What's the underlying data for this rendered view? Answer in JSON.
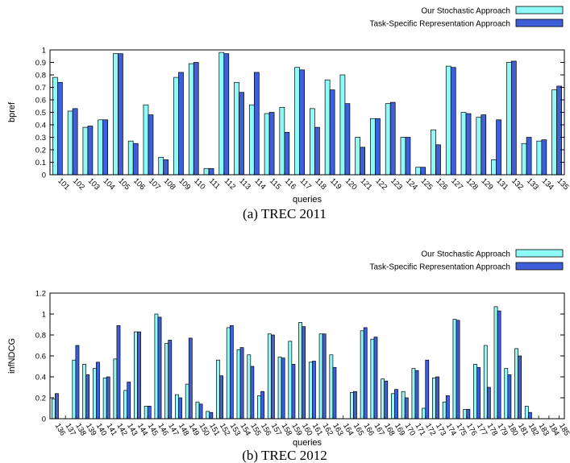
{
  "colors": {
    "stochastic": "#8ffbf8",
    "task_specific": "#3f5fd8",
    "outline": "#000000"
  },
  "chart_data": [
    {
      "type": "bar",
      "caption": "(a)  TREC 2011",
      "xlabel": "queries",
      "ylabel": "bpref",
      "ylim": [
        0,
        1
      ],
      "yticks": [
        0,
        0.1,
        0.2,
        0.3,
        0.4,
        0.5,
        0.6,
        0.7,
        0.8,
        0.9,
        1
      ],
      "grid": false,
      "legend_position": "top-right",
      "categories": [
        "101",
        "102",
        "103",
        "104",
        "105",
        "106",
        "107",
        "108",
        "109",
        "110",
        "111",
        "112",
        "113",
        "114",
        "115",
        "116",
        "117",
        "118",
        "119",
        "120",
        "121",
        "122",
        "123",
        "124",
        "125",
        "126",
        "127",
        "128",
        "129",
        "131",
        "132",
        "133",
        "134",
        "135"
      ],
      "series": [
        {
          "name": "Our Stochastic Approach",
          "color": "#8ffbf8",
          "values": [
            0.78,
            0.51,
            0.38,
            0.44,
            0.97,
            0.27,
            0.56,
            0.14,
            0.78,
            0.89,
            0.05,
            0.98,
            0.74,
            0.56,
            0.49,
            0.54,
            0.86,
            0.53,
            0.76,
            0.8,
            0.3,
            0.45,
            0.57,
            0.3,
            0.06,
            0.36,
            0.87,
            0.5,
            0.46,
            0.12,
            0.9,
            0.25,
            0.27,
            0.68
          ]
        },
        {
          "name": "Task-Specific Representation Approach",
          "color": "#3f5fd8",
          "values": [
            0.74,
            0.53,
            0.39,
            0.44,
            0.97,
            0.25,
            0.48,
            0.12,
            0.82,
            0.9,
            0.05,
            0.97,
            0.66,
            0.82,
            0.5,
            0.34,
            0.84,
            0.38,
            0.68,
            0.57,
            0.22,
            0.45,
            0.58,
            0.3,
            0.06,
            0.24,
            0.86,
            0.49,
            0.48,
            0.44,
            0.91,
            0.3,
            0.28,
            0.71
          ]
        }
      ]
    },
    {
      "type": "bar",
      "caption": "(b)  TREC 2012",
      "xlabel": "queries",
      "ylabel": "infNDCG",
      "ylim": [
        0,
        1.2
      ],
      "yticks": [
        0,
        0.2,
        0.4,
        0.6,
        0.8,
        1,
        1.2
      ],
      "grid": false,
      "legend_position": "top-right",
      "categories": [
        "136",
        "137",
        "138",
        "139",
        "140",
        "141",
        "142",
        "143",
        "144",
        "145",
        "146",
        "147",
        "148",
        "149",
        "150",
        "151",
        "152",
        "153",
        "154",
        "155",
        "156",
        "157",
        "158",
        "159",
        "160",
        "161",
        "162",
        "163",
        "164",
        "165",
        "166",
        "167",
        "168",
        "169",
        "170",
        "171",
        "172",
        "173",
        "174",
        "175",
        "176",
        "177",
        "178",
        "179",
        "180",
        "181",
        "182",
        "183",
        "184",
        "185"
      ],
      "series": [
        {
          "name": "Our Stochastic Approach",
          "color": "#8ffbf8",
          "values": [
            0.19,
            0,
            0.56,
            0.52,
            0.48,
            0.39,
            0.57,
            0.27,
            0.83,
            0.12,
            1.0,
            0.72,
            0.23,
            0.33,
            0.16,
            0.07,
            0.56,
            0.87,
            0.66,
            0.61,
            0.22,
            0.81,
            0.59,
            0.74,
            0.92,
            0.54,
            0.81,
            0.61,
            0,
            0.25,
            0.84,
            0.76,
            0.38,
            0.24,
            0.26,
            0.48,
            0.1,
            0.39,
            0.16,
            0.95,
            0.09,
            0.52,
            0.7,
            1.07,
            0.48,
            0.67,
            0.12,
            0,
            0,
            0
          ]
        },
        {
          "name": "Task-Specific Representation Approach",
          "color": "#3f5fd8",
          "values": [
            0.24,
            0,
            0.7,
            0.42,
            0.54,
            0.4,
            0.89,
            0.35,
            0.83,
            0.12,
            0.97,
            0.75,
            0.2,
            0.77,
            0.14,
            0.06,
            0.41,
            0.89,
            0.68,
            0.5,
            0.26,
            0.8,
            0.58,
            0.52,
            0.88,
            0.55,
            0.81,
            0.49,
            0,
            0.26,
            0.87,
            0.78,
            0.36,
            0.28,
            0.2,
            0.46,
            0.56,
            0.4,
            0.22,
            0.94,
            0.09,
            0.49,
            0.3,
            1.03,
            0.42,
            0.6,
            0.06,
            0,
            0,
            0
          ]
        }
      ]
    }
  ]
}
